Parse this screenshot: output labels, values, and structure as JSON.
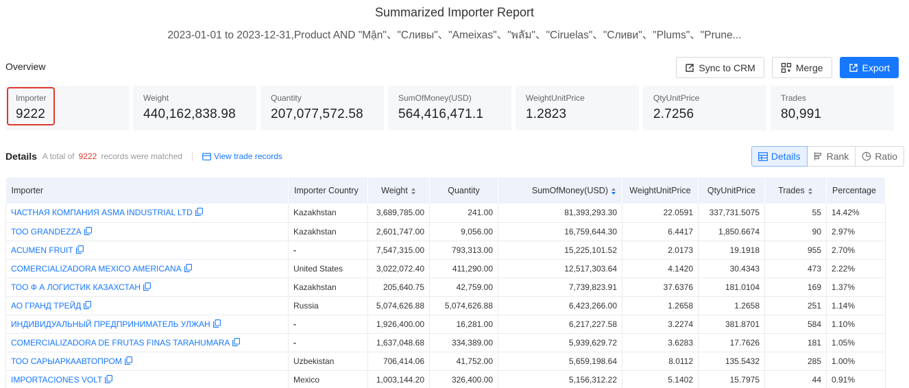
{
  "header": {
    "title": "Summarized Importer Report",
    "query": "2023-01-01 to 2023-12-31,Product AND \"Mận\"、\"Сливы\"、\"Ameixas\"、\"พลัม\"、\"Ciruelas\"、\"Сливи\"、\"Plums\"、\"Prune..."
  },
  "overview": {
    "label": "Overview"
  },
  "toolbar": {
    "sync_label": "Sync to CRM",
    "merge_label": "Merge",
    "export_label": "Export"
  },
  "stats": [
    {
      "label": "Importer",
      "value": "9222"
    },
    {
      "label": "Weight",
      "value": "440,162,838.98"
    },
    {
      "label": "Quantity",
      "value": "207,077,572.58"
    },
    {
      "label": "SumOfMoney(USD)",
      "value": "564,416,471.1"
    },
    {
      "label": "WeightUnitPrice",
      "value": "1.2823"
    },
    {
      "label": "QtyUnitPrice",
      "value": "2.7256"
    },
    {
      "label": "Trades",
      "value": "80,991"
    }
  ],
  "details": {
    "title": "Details",
    "matched_prefix": "A total of",
    "matched_count": "9222",
    "matched_suffix": "records were matched",
    "view_link": "View trade records"
  },
  "view_tabs": [
    {
      "label": "Details",
      "icon": "table-icon",
      "active": true
    },
    {
      "label": "Rank",
      "icon": "rank-icon",
      "active": false
    },
    {
      "label": "Ratio",
      "icon": "pie-chart-icon",
      "active": false
    }
  ],
  "table": {
    "columns": [
      "Importer",
      "Importer Country",
      "Weight",
      "Quantity",
      "SumOfMoney(USD)",
      "WeightUnitPrice",
      "QtyUnitPrice",
      "Trades",
      "Percentage"
    ],
    "rows": [
      [
        "ЧАСТНАЯ КОМПАНИЯ ASMA INDUSTRIAL LTD",
        "Kazakhstan",
        "3,689,785.00",
        "241.00",
        "81,393,293.30",
        "22.0591",
        "337,731.5075",
        "55",
        "14.42%"
      ],
      [
        "ТОО GRANDEZZA",
        "Kazakhstan",
        "2,601,747.00",
        "9,056.00",
        "16,759,644.30",
        "6.4417",
        "1,850.6674",
        "90",
        "2.97%"
      ],
      [
        "ACUMEN FRUIT",
        "-",
        "7,547,315.00",
        "793,313.00",
        "15,225,101.52",
        "2.0173",
        "19.1918",
        "955",
        "2.70%"
      ],
      [
        "COMERCIALIZADORA MEXICO AMERICANA",
        "United States",
        "3,022,072.40",
        "411,290.00",
        "12,517,303.64",
        "4.1420",
        "30.4343",
        "473",
        "2.22%"
      ],
      [
        "ТОО Ф А ЛОГИСТИК КАЗАХСТАН",
        "Kazakhstan",
        "205,640.75",
        "42,759.00",
        "7,739,823.91",
        "37.6376",
        "181.0104",
        "169",
        "1.37%"
      ],
      [
        "АО ГРАНД ТРЕЙД",
        "Russia",
        "5,074,626.88",
        "5,074,626.88",
        "6,423,266.00",
        "1.2658",
        "1.2658",
        "251",
        "1.14%"
      ],
      [
        "ИНДИВИДУАЛЬНЫЙ ПРЕДПРИНИМАТЕЛЬ УЛЖАН",
        "-",
        "1,926,400.00",
        "16,281.00",
        "6,217,227.58",
        "3.2274",
        "381.8701",
        "584",
        "1.10%"
      ],
      [
        "COMERCIALIZADORA DE FRUTAS FINAS TARAHUMARA",
        "-",
        "1,637,048.68",
        "334,389.00",
        "5,939,629.72",
        "3.6283",
        "17.7626",
        "181",
        "1.05%"
      ],
      [
        "ТОО САРЫАРКААВТОПРОМ",
        "Uzbekistan",
        "706,414.06",
        "41,752.00",
        "5,659,198.64",
        "8.0112",
        "135.5432",
        "285",
        "1.00%"
      ],
      [
        "IMPORTACIONES VOLT",
        "Mexico",
        "1,003,144.20",
        "326,400.00",
        "5,156,312.22",
        "5.1402",
        "15.7975",
        "44",
        "0.91%"
      ]
    ]
  }
}
